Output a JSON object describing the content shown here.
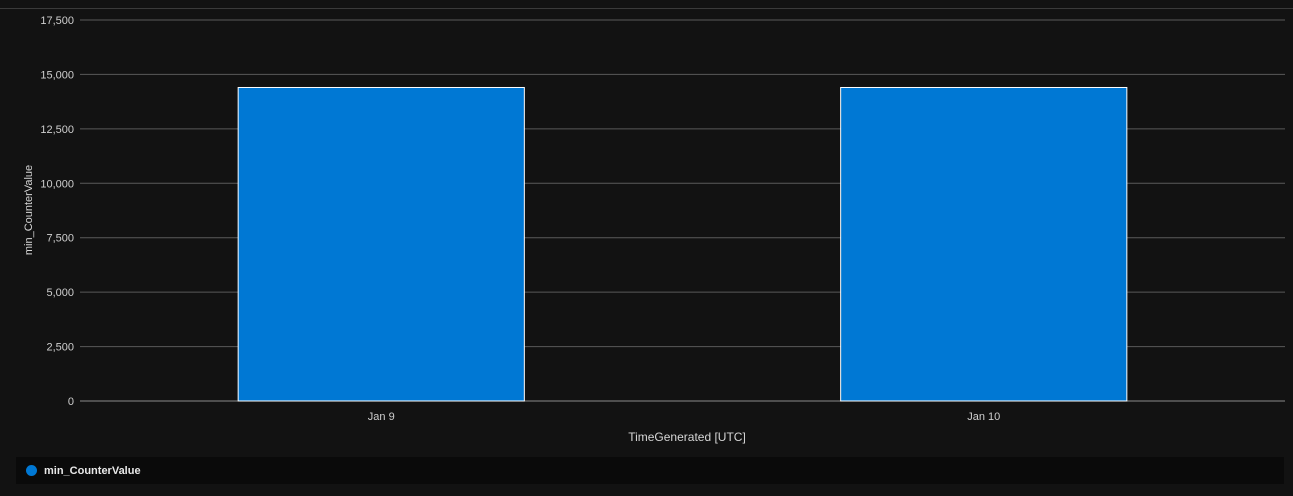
{
  "chart_data": {
    "type": "bar",
    "categories": [
      "Jan 9",
      "Jan 10"
    ],
    "series": [
      {
        "name": "min_CounterValue",
        "values": [
          14400,
          14400
        ],
        "color": "#0078d4"
      }
    ],
    "xlabel": "TimeGenerated [UTC]",
    "ylabel": "min_CounterValue",
    "ylim": [
      0,
      17500
    ],
    "yticks": [
      0,
      2500,
      5000,
      7500,
      10000,
      12500,
      15000,
      17500
    ],
    "ytick_labels": [
      "0",
      "2,500",
      "5,000",
      "7,500",
      "10,000",
      "12,500",
      "15,000",
      "17,500"
    ],
    "grid": true,
    "legend_position": "bottom"
  },
  "legend": {
    "items": [
      {
        "label": "min_CounterValue",
        "color": "#0078d4"
      }
    ]
  }
}
